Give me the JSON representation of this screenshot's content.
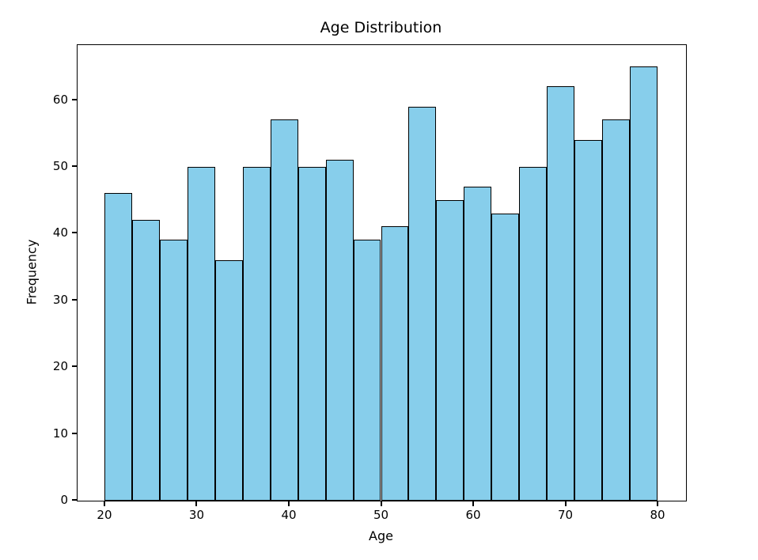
{
  "chart_data": {
    "type": "bar",
    "subtype": "histogram",
    "title": "Age Distribution",
    "xlabel": "Age",
    "ylabel": "Frequency",
    "bin_edges": [
      20,
      23,
      26,
      29,
      32,
      35,
      38,
      41,
      44,
      47,
      50,
      53,
      56,
      59,
      62,
      65,
      68,
      71,
      74,
      77,
      80
    ],
    "values": [
      46,
      42,
      39,
      50,
      36,
      50,
      57,
      50,
      51,
      39,
      41,
      59,
      45,
      47,
      43,
      50,
      62,
      54,
      57,
      65
    ],
    "xlim": [
      17,
      83
    ],
    "ylim": [
      0,
      68.25
    ],
    "xticks": [
      20,
      30,
      40,
      50,
      60,
      70,
      80
    ],
    "yticks": [
      0,
      10,
      20,
      30,
      40,
      50,
      60
    ],
    "grid": false,
    "legend": null,
    "bar_color": "#87CEEB",
    "bar_edge_color": "#000000",
    "axis_color": "#000000",
    "background_color": "#FFFFFF"
  }
}
